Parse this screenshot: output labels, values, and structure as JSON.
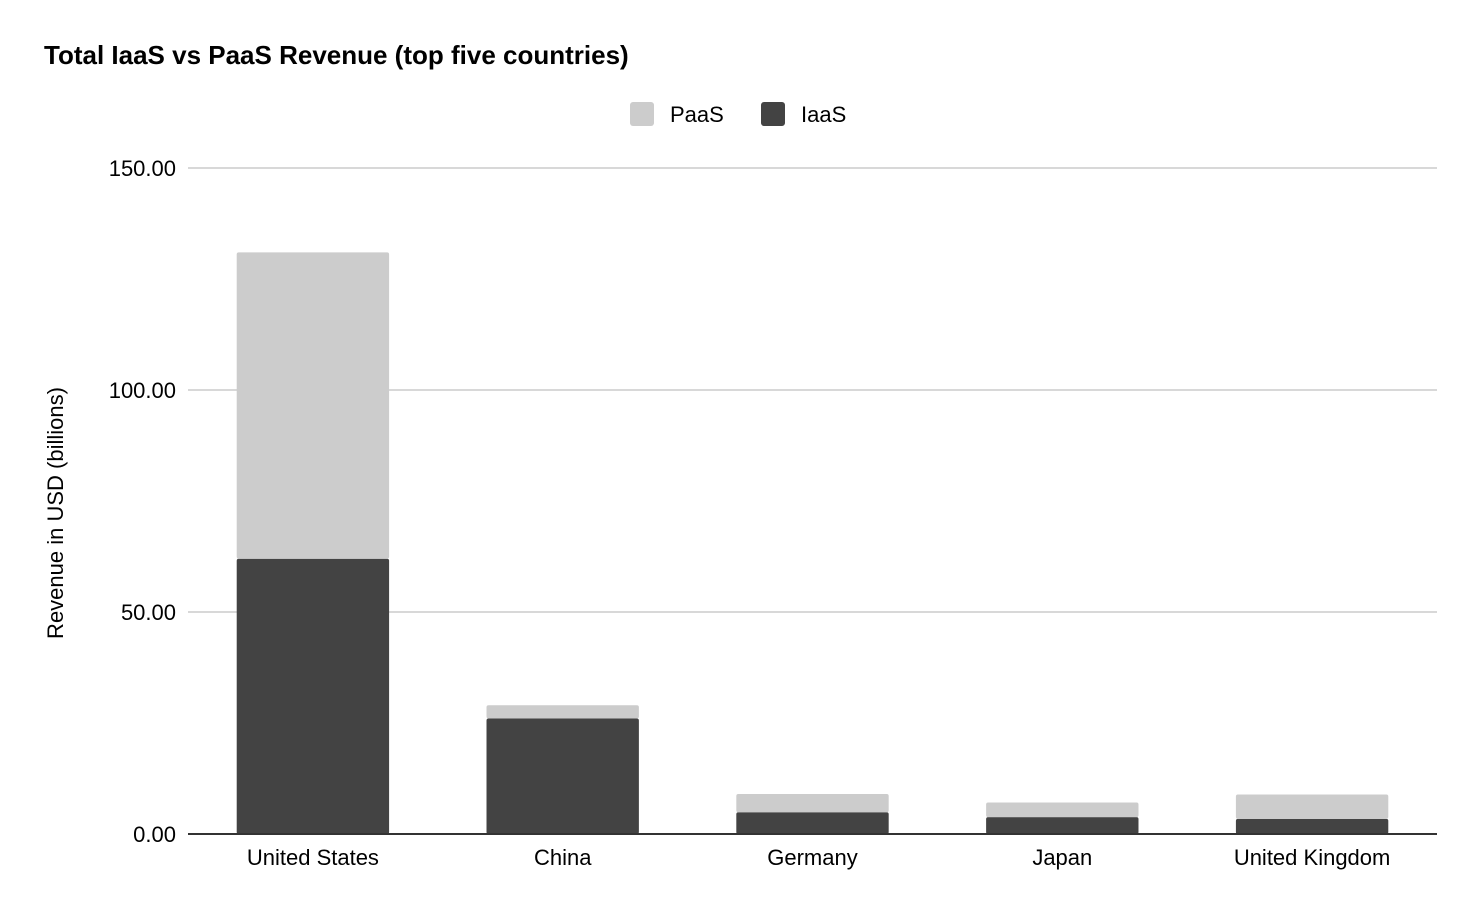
{
  "chart_data": {
    "type": "bar",
    "stacked": true,
    "title": "Total IaaS vs PaaS Revenue (top five countries)",
    "xlabel": "",
    "ylabel": "Revenue in USD (billions)",
    "ylim": [
      0,
      150
    ],
    "yticks": [
      0,
      50,
      100,
      150
    ],
    "ytick_labels": [
      "0.00",
      "50.00",
      "100.00",
      "150.00"
    ],
    "grid": true,
    "legend_position": "top-center",
    "categories": [
      "United States",
      "China",
      "Germany",
      "Japan",
      "United Kingdom"
    ],
    "legend_order": [
      "PaaS",
      "IaaS"
    ],
    "series": [
      {
        "name": "IaaS",
        "color": "#434343",
        "values": [
          62.0,
          26.0,
          4.9,
          3.8,
          3.4
        ]
      },
      {
        "name": "PaaS",
        "color": "#cccccc",
        "values": [
          69.0,
          3.0,
          4.1,
          3.3,
          5.5
        ]
      }
    ]
  }
}
